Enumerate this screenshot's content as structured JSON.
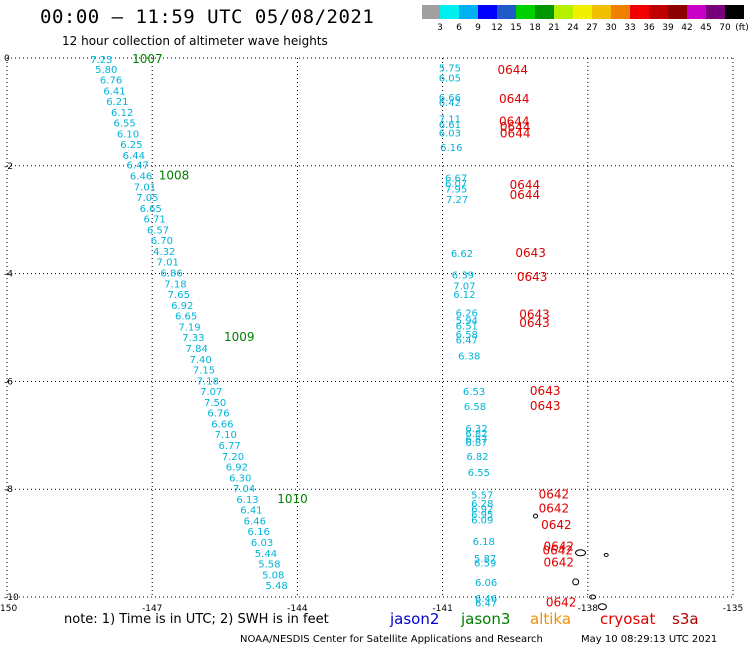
{
  "header": {
    "title": "00:00 – 11:59 UTC 05/08/2021",
    "subtitle": "12 hour collection of altimeter wave heights"
  },
  "legend": {
    "unit_label": "(ft)",
    "bins": [
      {
        "label": "3",
        "color": "#00f0f0"
      },
      {
        "label": "6",
        "color": "#00b0f0"
      },
      {
        "label": "9",
        "color": "#0000ff"
      },
      {
        "label": "12",
        "color": "#1e5ac8"
      },
      {
        "label": "15",
        "color": "#00d000"
      },
      {
        "label": "18",
        "color": "#009600"
      },
      {
        "label": "21",
        "color": "#b4f000"
      },
      {
        "label": "24",
        "color": "#f0f000"
      },
      {
        "label": "27",
        "color": "#f0c000"
      },
      {
        "label": "30",
        "color": "#f08000"
      },
      {
        "label": "33",
        "color": "#f00000"
      },
      {
        "label": "36",
        "color": "#c00000"
      },
      {
        "label": "39",
        "color": "#8c0000"
      },
      {
        "label": "42",
        "color": "#c800c8"
      },
      {
        "label": "45",
        "color": "#780078"
      },
      {
        "label": "70",
        "color": "#000000"
      }
    ],
    "first_color": "#a0a0a0"
  },
  "chart_data": {
    "type": "scatter",
    "title": "00:00 – 11:59 UTC 05/08/2021",
    "subtitle": "12 hour collection of altimeter wave heights",
    "xlim": [
      -150,
      -135
    ],
    "ylim": [
      -10,
      0
    ],
    "x_ticks": [
      "-150",
      "-147",
      "-144",
      "-141",
      "-138",
      "-135"
    ],
    "y_ticks": [
      "0",
      "-2",
      "-4",
      "-6",
      "-8",
      "-10"
    ],
    "grid": "dotted",
    "points": [
      {
        "x": -148.05,
        "y": -0.02,
        "v": "7.23"
      },
      {
        "x": -147.95,
        "y": -0.2,
        "v": "5.80"
      },
      {
        "x": -147.85,
        "y": -0.4,
        "v": "6.76"
      },
      {
        "x": -147.78,
        "y": -0.6,
        "v": "6.41"
      },
      {
        "x": -147.72,
        "y": -0.8,
        "v": "6.21"
      },
      {
        "x": -147.62,
        "y": -1.0,
        "v": "6.12"
      },
      {
        "x": -147.57,
        "y": -1.2,
        "v": "6.55"
      },
      {
        "x": -147.5,
        "y": -1.4,
        "v": "6.10"
      },
      {
        "x": -147.43,
        "y": -1.6,
        "v": "6.25"
      },
      {
        "x": -147.38,
        "y": -1.8,
        "v": "6.44"
      },
      {
        "x": -147.3,
        "y": -1.98,
        "v": "6.47"
      },
      {
        "x": -147.23,
        "y": -2.18,
        "v": "6.46"
      },
      {
        "x": -147.15,
        "y": -2.38,
        "v": "7.01"
      },
      {
        "x": -147.1,
        "y": -2.58,
        "v": "7.05"
      },
      {
        "x": -147.03,
        "y": -2.78,
        "v": "6.65"
      },
      {
        "x": -146.95,
        "y": -2.98,
        "v": "6.71"
      },
      {
        "x": -146.88,
        "y": -3.18,
        "v": "6.57"
      },
      {
        "x": -146.8,
        "y": -3.38,
        "v": "6.70"
      },
      {
        "x": -146.75,
        "y": -3.58,
        "v": "4.32"
      },
      {
        "x": -146.68,
        "y": -3.78,
        "v": "7.01"
      },
      {
        "x": -146.6,
        "y": -3.98,
        "v": "6.86"
      },
      {
        "x": -146.52,
        "y": -4.18,
        "v": "7.18"
      },
      {
        "x": -146.45,
        "y": -4.38,
        "v": "7.65"
      },
      {
        "x": -146.38,
        "y": -4.58,
        "v": "6.92"
      },
      {
        "x": -146.3,
        "y": -4.78,
        "v": "6.65"
      },
      {
        "x": -146.23,
        "y": -4.98,
        "v": "7.19"
      },
      {
        "x": -146.15,
        "y": -5.18,
        "v": "7.33"
      },
      {
        "x": -146.08,
        "y": -5.38,
        "v": "7.84"
      },
      {
        "x": -146.0,
        "y": -5.58,
        "v": "7.40"
      },
      {
        "x": -145.93,
        "y": -5.78,
        "v": "7.15"
      },
      {
        "x": -145.85,
        "y": -5.98,
        "v": "7.18"
      },
      {
        "x": -145.78,
        "y": -6.18,
        "v": "7.07"
      },
      {
        "x": -145.7,
        "y": -6.38,
        "v": "7.50"
      },
      {
        "x": -145.63,
        "y": -6.58,
        "v": "6.76"
      },
      {
        "x": -145.55,
        "y": -6.78,
        "v": "6.66"
      },
      {
        "x": -145.48,
        "y": -6.98,
        "v": "7.10"
      },
      {
        "x": -145.4,
        "y": -7.18,
        "v": "6.77"
      },
      {
        "x": -145.33,
        "y": -7.38,
        "v": "7.20"
      },
      {
        "x": -145.25,
        "y": -7.58,
        "v": "6.92"
      },
      {
        "x": -145.18,
        "y": -7.78,
        "v": "6.30"
      },
      {
        "x": -145.1,
        "y": -7.98,
        "v": "7.04"
      },
      {
        "x": -145.03,
        "y": -8.18,
        "v": "6.13"
      },
      {
        "x": -144.95,
        "y": -8.38,
        "v": "6.41"
      },
      {
        "x": -144.88,
        "y": -8.58,
        "v": "6.46"
      },
      {
        "x": -144.8,
        "y": -8.78,
        "v": "6.16"
      },
      {
        "x": -144.73,
        "y": -8.98,
        "v": "6.03"
      },
      {
        "x": -144.65,
        "y": -9.18,
        "v": "5.44"
      },
      {
        "x": -144.58,
        "y": -9.38,
        "v": "5.58"
      },
      {
        "x": -144.5,
        "y": -9.58,
        "v": "5.08"
      },
      {
        "x": -144.43,
        "y": -9.78,
        "v": "5.48"
      },
      {
        "x": -140.85,
        "y": -0.18,
        "v": "5.75"
      },
      {
        "x": -140.85,
        "y": -0.36,
        "v": "6.05"
      },
      {
        "x": -140.85,
        "y": -0.72,
        "v": "6.66"
      },
      {
        "x": -140.85,
        "y": -0.82,
        "v": "6.42"
      },
      {
        "x": -140.85,
        "y": -1.12,
        "v": "7.11"
      },
      {
        "x": -140.85,
        "y": -1.22,
        "v": "6.61"
      },
      {
        "x": -140.85,
        "y": -1.38,
        "v": "6.03"
      },
      {
        "x": -140.82,
        "y": -1.65,
        "v": "6.16"
      },
      {
        "x": -140.72,
        "y": -2.22,
        "v": "6.67"
      },
      {
        "x": -140.72,
        "y": -2.32,
        "v": "6.07"
      },
      {
        "x": -140.72,
        "y": -2.42,
        "v": "7.95"
      },
      {
        "x": -140.7,
        "y": -2.62,
        "v": "7.27"
      },
      {
        "x": -140.6,
        "y": -3.62,
        "v": "6.62"
      },
      {
        "x": -140.58,
        "y": -4.02,
        "v": "6.39"
      },
      {
        "x": -140.55,
        "y": -4.22,
        "v": "7.07"
      },
      {
        "x": -140.55,
        "y": -4.38,
        "v": "6.12"
      },
      {
        "x": -140.5,
        "y": -4.72,
        "v": "6.26"
      },
      {
        "x": -140.5,
        "y": -4.86,
        "v": "5.94"
      },
      {
        "x": -140.5,
        "y": -4.96,
        "v": "6.51"
      },
      {
        "x": -140.5,
        "y": -5.12,
        "v": "6.58"
      },
      {
        "x": -140.5,
        "y": -5.22,
        "v": "6.47"
      },
      {
        "x": -140.45,
        "y": -5.52,
        "v": "6.38"
      },
      {
        "x": -140.35,
        "y": -6.18,
        "v": "6.53"
      },
      {
        "x": -140.33,
        "y": -6.46,
        "v": "6.58"
      },
      {
        "x": -140.3,
        "y": -6.86,
        "v": "6.32"
      },
      {
        "x": -140.3,
        "y": -6.96,
        "v": "6.82"
      },
      {
        "x": -140.3,
        "y": -7.06,
        "v": "6.87"
      },
      {
        "x": -140.3,
        "y": -7.12,
        "v": "6.87"
      },
      {
        "x": -140.28,
        "y": -7.38,
        "v": "6.82"
      },
      {
        "x": -140.25,
        "y": -7.68,
        "v": "6.55"
      },
      {
        "x": -140.18,
        "y": -8.1,
        "v": "5.57"
      },
      {
        "x": -140.18,
        "y": -8.26,
        "v": "6.28"
      },
      {
        "x": -140.18,
        "y": -8.36,
        "v": "6.92"
      },
      {
        "x": -140.18,
        "y": -8.46,
        "v": "6.95"
      },
      {
        "x": -140.18,
        "y": -8.56,
        "v": "6.09"
      },
      {
        "x": -140.15,
        "y": -8.96,
        "v": "6.18"
      },
      {
        "x": -140.12,
        "y": -9.28,
        "v": "5.87"
      },
      {
        "x": -140.12,
        "y": -9.36,
        "v": "6.59"
      },
      {
        "x": -140.1,
        "y": -9.72,
        "v": "6.06"
      },
      {
        "x": -140.1,
        "y": -10.02,
        "v": "6.46"
      },
      {
        "x": -140.1,
        "y": -10.1,
        "v": "6.47"
      }
    ],
    "time_labels": [
      {
        "x": -147.1,
        "y": -0.02,
        "text": "1007"
      },
      {
        "x": -146.55,
        "y": -2.18,
        "text": "1008"
      },
      {
        "x": -145.2,
        "y": -5.18,
        "text": "1009"
      },
      {
        "x": -144.1,
        "y": -8.18,
        "text": "1010"
      },
      {
        "x": -139.55,
        "y": -0.22,
        "text": "0644"
      },
      {
        "x": -139.52,
        "y": -0.76,
        "text": "0644"
      },
      {
        "x": -139.52,
        "y": -1.18,
        "text": "0644"
      },
      {
        "x": -139.5,
        "y": -1.28,
        "text": "0644"
      },
      {
        "x": -139.5,
        "y": -1.4,
        "text": "0644"
      },
      {
        "x": -139.3,
        "y": -2.36,
        "text": "0644"
      },
      {
        "x": -139.3,
        "y": -2.54,
        "text": "0644"
      },
      {
        "x": -139.18,
        "y": -3.62,
        "text": "0643"
      },
      {
        "x": -139.15,
        "y": -4.06,
        "text": "0643"
      },
      {
        "x": -139.1,
        "y": -4.76,
        "text": "0643"
      },
      {
        "x": -139.1,
        "y": -4.92,
        "text": "0643"
      },
      {
        "x": -138.88,
        "y": -6.18,
        "text": "0643"
      },
      {
        "x": -138.88,
        "y": -6.46,
        "text": "0643"
      },
      {
        "x": -138.7,
        "y": -8.1,
        "text": "0642"
      },
      {
        "x": -138.7,
        "y": -8.36,
        "text": "0642"
      },
      {
        "x": -138.65,
        "y": -8.66,
        "text": "0642"
      },
      {
        "x": -138.6,
        "y": -9.06,
        "text": "0642"
      },
      {
        "x": -138.62,
        "y": -9.14,
        "text": "0642"
      },
      {
        "x": -138.6,
        "y": -9.36,
        "text": "0642"
      },
      {
        "x": -138.55,
        "y": -10.1,
        "text": "0642"
      }
    ]
  },
  "footer": {
    "note": "note:  1) Time is in UTC; 2) SWH is in feet",
    "satellites": [
      {
        "name": "jason2",
        "color": "#0000cc"
      },
      {
        "name": "jason3",
        "color": "#008000"
      },
      {
        "name": "altika",
        "color": "#f09000"
      },
      {
        "name": "cryosat",
        "color": "#e00000"
      },
      {
        "name": "s3a",
        "color": "#b40000"
      }
    ],
    "credit": "NOAA/NESDIS Center for Satellite Applications and Research",
    "timestamp": "May 10 08:29:13 UTC 2021"
  }
}
